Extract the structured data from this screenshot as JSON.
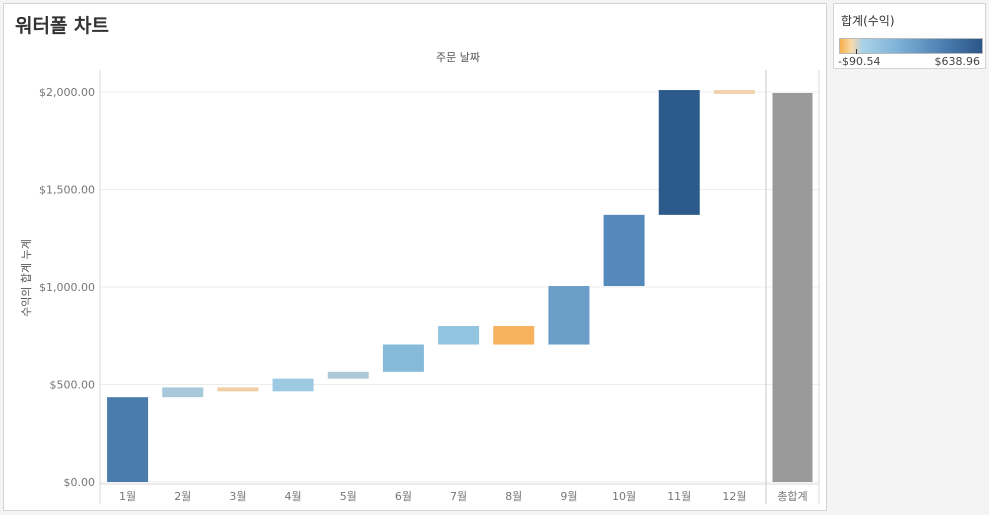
{
  "title": "워터폴 차트",
  "legend": {
    "title": "합계(수익)",
    "min_label": "-$90.54",
    "max_label": "$638.96",
    "min_value": -90.54,
    "max_value": 638.96
  },
  "colors": {
    "total": "#9a9a9a",
    "gridline": "#ececec",
    "axis_text": "#777777"
  },
  "chart_data": {
    "type": "bar",
    "subtype": "waterfall",
    "xlabel": "주문 날짜",
    "ylabel": "수익의 합계 누계",
    "categories": [
      "1월",
      "2월",
      "3월",
      "4월",
      "5월",
      "6월",
      "7월",
      "8월",
      "9월",
      "10월",
      "11월",
      "12월"
    ],
    "values": [
      435,
      50,
      -20,
      65,
      35,
      140,
      95,
      -95,
      300,
      365,
      640,
      -20
    ],
    "bar_colors": [
      "#4a7cac",
      "#a7c7da",
      "#f0cda3",
      "#9ccae3",
      "#adc9d8",
      "#86bada",
      "#93c4e0",
      "#f6b25f",
      "#6a9ec9",
      "#5689bb",
      "#2c5a8b",
      "#f1d2ae"
    ],
    "total_label": "총합계",
    "total_value": 1995,
    "yticks": [
      0,
      500,
      1000,
      1500,
      2000
    ],
    "ytick_labels": [
      "$0.00",
      "$500.00",
      "$1,000.00",
      "$1,500.00",
      "$2,000.00"
    ],
    "ylim": [
      0,
      2100
    ],
    "grid": true
  }
}
